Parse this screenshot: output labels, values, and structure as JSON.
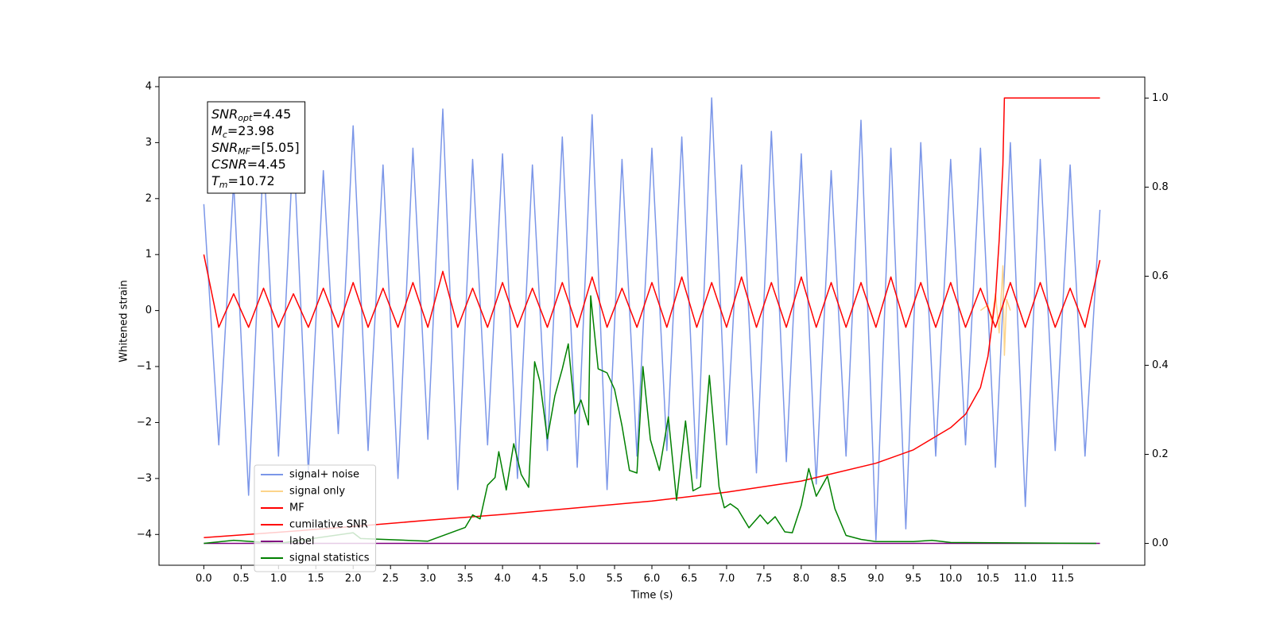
{
  "chart_data": {
    "type": "line",
    "xlabel": "Time (s)",
    "ylabel": "Whitened strain",
    "xlim": [
      -0.6,
      12.6
    ],
    "ylim": [
      -4.55,
      4.17
    ],
    "y2lim": [
      -0.049,
      1.047
    ],
    "xticks": [
      {
        "value": 0,
        "label": "0.0"
      },
      {
        "value": 0.5,
        "label": "0.5"
      },
      {
        "value": 1,
        "label": "1.0"
      },
      {
        "value": 1.5,
        "label": "1.5"
      },
      {
        "value": 2,
        "label": "2.0"
      },
      {
        "value": 2.5,
        "label": "2.5"
      },
      {
        "value": 3,
        "label": "3.0"
      },
      {
        "value": 3.5,
        "label": "3.5"
      },
      {
        "value": 4,
        "label": "4.0"
      },
      {
        "value": 4.5,
        "label": "4.5"
      },
      {
        "value": 5,
        "label": "5.0"
      },
      {
        "value": 5.5,
        "label": "5.5"
      },
      {
        "value": 6,
        "label": "6.0"
      },
      {
        "value": 6.5,
        "label": "6.5"
      },
      {
        "value": 7,
        "label": "7.0"
      },
      {
        "value": 7.5,
        "label": "7.5"
      },
      {
        "value": 8,
        "label": "8.0"
      },
      {
        "value": 8.5,
        "label": "8.5"
      },
      {
        "value": 9,
        "label": "9.0"
      },
      {
        "value": 9.5,
        "label": "9.5"
      },
      {
        "value": 10,
        "label": "10.0"
      },
      {
        "value": 10.5,
        "label": "10.5"
      },
      {
        "value": 11,
        "label": "11.0"
      },
      {
        "value": 11.5,
        "label": "11.5"
      }
    ],
    "yticks": [
      {
        "value": -4,
        "label": "−4"
      },
      {
        "value": -3,
        "label": "−3"
      },
      {
        "value": -2,
        "label": "−2"
      },
      {
        "value": -1,
        "label": "−1"
      },
      0,
      1,
      2,
      3,
      4
    ],
    "y2ticks": [
      {
        "value": 0,
        "label": "0.0"
      },
      {
        "value": 0.2,
        "label": "0.2"
      },
      {
        "value": 0.4,
        "label": "0.4"
      },
      {
        "value": 0.6,
        "label": "0.6"
      },
      {
        "value": 0.8,
        "label": "0.8"
      },
      {
        "value": 1,
        "label": "1.0"
      }
    ],
    "grid": false,
    "legend": "lower left",
    "annotation": [
      {
        "base": "SNR",
        "sub": "opt",
        "text": "=4.45"
      },
      {
        "base": "M",
        "sub": "c",
        "text": "=23.98"
      },
      {
        "base": "SNR",
        "sub": "MF",
        "text": "=[5.05]"
      },
      {
        "base": "CSNR",
        "text": "=4.45"
      },
      {
        "base": "T",
        "sub": "m",
        "text": "=10.72"
      }
    ],
    "series": [
      {
        "name": "signal+ noise",
        "color": "#7b96e8",
        "x": [
          0,
          0.2,
          0.4,
          0.6,
          0.8,
          1,
          1.2,
          1.4,
          1.6,
          1.8,
          2,
          2.2,
          2.4,
          2.6,
          2.8,
          3,
          3.2,
          3.4,
          3.6,
          3.8,
          4,
          4.2,
          4.4,
          4.6,
          4.8,
          5,
          5.2,
          5.4,
          5.6,
          5.8,
          6,
          6.2,
          6.4,
          6.6,
          6.8,
          7,
          7.2,
          7.4,
          7.6,
          7.8,
          8,
          8.2,
          8.4,
          8.6,
          8.8,
          9,
          9.2,
          9.4,
          9.6,
          9.8,
          10,
          10.2,
          10.4,
          10.6,
          10.8,
          11,
          11.2,
          11.4,
          11.6,
          11.8,
          12
        ],
        "values": [
          1.9,
          -2.4,
          2.3,
          -3.3,
          2.8,
          -2.6,
          3.0,
          -2.9,
          2.5,
          -2.2,
          3.3,
          -2.5,
          2.6,
          -3.0,
          2.9,
          -2.3,
          3.6,
          -3.2,
          2.7,
          -2.4,
          2.8,
          -3.0,
          2.6,
          -2.5,
          3.1,
          -2.8,
          3.5,
          -3.2,
          2.7,
          -2.6,
          2.9,
          -2.5,
          3.1,
          -3.0,
          3.8,
          -2.4,
          2.6,
          -2.9,
          3.2,
          -2.7,
          2.8,
          -3.1,
          2.5,
          -2.6,
          3.4,
          -4.1,
          2.9,
          -3.9,
          3.0,
          -2.6,
          2.7,
          -2.4,
          2.9,
          -2.8,
          3.0,
          -3.5,
          2.7,
          -2.5,
          2.6,
          -2.6,
          1.8
        ]
      },
      {
        "name": "signal only",
        "color": "#fcd48a",
        "x": [
          10.4,
          10.5,
          10.55,
          10.6,
          10.65,
          10.7,
          10.72,
          10.75,
          10.8
        ],
        "values": [
          0,
          0.1,
          -0.2,
          0.3,
          -0.4,
          0.8,
          -0.8,
          0.2,
          0
        ]
      },
      {
        "name": "MF",
        "color": "#ff0000",
        "x": [
          0,
          0.2,
          0.4,
          0.6,
          0.8,
          1,
          1.2,
          1.4,
          1.6,
          1.8,
          2,
          2.2,
          2.4,
          2.6,
          2.8,
          3,
          3.2,
          3.4,
          3.6,
          3.8,
          4,
          4.2,
          4.4,
          4.6,
          4.8,
          5,
          5.2,
          5.4,
          5.6,
          5.8,
          6,
          6.2,
          6.4,
          6.6,
          6.8,
          7,
          7.2,
          7.4,
          7.6,
          7.8,
          8,
          8.2,
          8.4,
          8.6,
          8.8,
          9,
          9.2,
          9.4,
          9.6,
          9.8,
          10,
          10.2,
          10.4,
          10.6,
          10.8,
          11,
          11.2,
          11.4,
          11.6,
          11.8,
          12
        ],
        "values": [
          1.0,
          -0.3,
          0.3,
          -0.3,
          0.4,
          -0.3,
          0.3,
          -0.3,
          0.4,
          -0.3,
          0.5,
          -0.3,
          0.4,
          -0.3,
          0.5,
          -0.3,
          0.7,
          -0.3,
          0.4,
          -0.3,
          0.5,
          -0.3,
          0.4,
          -0.3,
          0.5,
          -0.3,
          0.6,
          -0.3,
          0.4,
          -0.3,
          0.5,
          -0.3,
          0.6,
          -0.3,
          0.5,
          -0.3,
          0.6,
          -0.3,
          0.5,
          -0.3,
          0.6,
          -0.3,
          0.5,
          -0.3,
          0.5,
          -0.3,
          0.6,
          -0.3,
          0.5,
          -0.3,
          0.5,
          -0.3,
          0.4,
          -0.3,
          0.5,
          -0.3,
          0.5,
          -0.3,
          0.4,
          -0.3,
          0.9
        ]
      },
      {
        "name": "cumilative SNR",
        "color": "#ff0000",
        "axis": "y2",
        "x": [
          0,
          1,
          2,
          3,
          4,
          5,
          6,
          7,
          8,
          9,
          9.5,
          10,
          10.2,
          10.4,
          10.5,
          10.6,
          10.65,
          10.7,
          10.72,
          12
        ],
        "values": [
          0.013,
          0.025,
          0.038,
          0.052,
          0.065,
          0.08,
          0.095,
          0.115,
          0.14,
          0.18,
          0.21,
          0.26,
          0.29,
          0.35,
          0.42,
          0.55,
          0.68,
          0.85,
          1.0,
          1.0
        ]
      },
      {
        "name": "label",
        "color": "#800080",
        "axis": "y2",
        "x": [
          0,
          12
        ],
        "values": [
          0,
          0
        ]
      },
      {
        "name": "signal statistics",
        "color": "#008000",
        "axis": "y2",
        "x": [
          0,
          0.4,
          1,
          2,
          2.1,
          3,
          3.5,
          3.6,
          3.7,
          3.8,
          3.9,
          3.95,
          4.05,
          4.15,
          4.25,
          4.35,
          4.43,
          4.5,
          4.6,
          4.7,
          4.8,
          4.88,
          4.97,
          5.05,
          5.15,
          5.18,
          5.28,
          5.4,
          5.5,
          5.6,
          5.7,
          5.8,
          5.88,
          5.98,
          6.1,
          6.22,
          6.33,
          6.45,
          6.55,
          6.65,
          6.77,
          6.9,
          6.97,
          7.05,
          7.15,
          7.3,
          7.45,
          7.55,
          7.65,
          7.78,
          7.88,
          8,
          8.1,
          8.2,
          8.35,
          8.45,
          8.6,
          8.8,
          9,
          9.5,
          9.75,
          10,
          11.95
        ],
        "values": [
          0,
          0.007,
          0,
          0.024,
          0.011,
          0.005,
          0.036,
          0.064,
          0.055,
          0.131,
          0.148,
          0.206,
          0.12,
          0.224,
          0.155,
          0.126,
          0.408,
          0.364,
          0.235,
          0.331,
          0.392,
          0.448,
          0.291,
          0.322,
          0.266,
          0.556,
          0.392,
          0.383,
          0.346,
          0.264,
          0.164,
          0.158,
          0.397,
          0.233,
          0.164,
          0.284,
          0.097,
          0.275,
          0.118,
          0.127,
          0.377,
          0.127,
          0.08,
          0.089,
          0.077,
          0.035,
          0.064,
          0.044,
          0.06,
          0.026,
          0.024,
          0.086,
          0.168,
          0.106,
          0.151,
          0.078,
          0.018,
          0.009,
          0.004,
          0.004,
          0.007,
          0.002,
          0
        ]
      }
    ]
  }
}
